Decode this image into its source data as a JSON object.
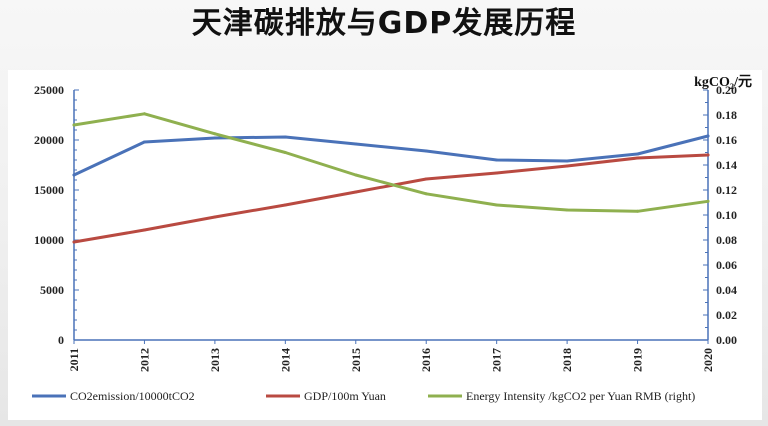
{
  "page": {
    "title": "天津碳排放与GDP发展历程"
  },
  "chart_data": {
    "type": "line",
    "x": [
      "2011",
      "2012",
      "2013",
      "2014",
      "2015",
      "2016",
      "2017",
      "2018",
      "2019",
      "2020"
    ],
    "left_axis": {
      "ylim": [
        0,
        25000
      ],
      "ticks": [
        "0",
        "5000",
        "10000",
        "15000",
        "20000",
        "25000"
      ]
    },
    "right_axis": {
      "label": "kgCO₂/元",
      "ylim": [
        0,
        0.2
      ],
      "ticks": [
        "0.00",
        "0.02",
        "0.04",
        "0.06",
        "0.08",
        "0.10",
        "0.12",
        "0.14",
        "0.16",
        "0.18",
        "0.20"
      ]
    },
    "series": [
      {
        "name": "CO2emission/10000tCO2",
        "color": "#4a72b8",
        "axis": "left",
        "values": [
          16500,
          19800,
          20200,
          20300,
          19600,
          18900,
          18000,
          17900,
          18600,
          20400
        ]
      },
      {
        "name": "GDP/100m Yuan",
        "color": "#b94a41",
        "axis": "left",
        "values": [
          9800,
          11000,
          12300,
          13500,
          14800,
          16100,
          16700,
          17400,
          18200,
          18500
        ]
      },
      {
        "name": "Energy Intensity /kgCO2 per Yuan RMB (right)",
        "color": "#8fb04f",
        "axis": "right",
        "values": [
          0.172,
          0.181,
          0.165,
          0.15,
          0.132,
          0.117,
          0.108,
          0.104,
          0.103,
          0.111
        ]
      }
    ],
    "grid": false,
    "legend_position": "bottom"
  }
}
